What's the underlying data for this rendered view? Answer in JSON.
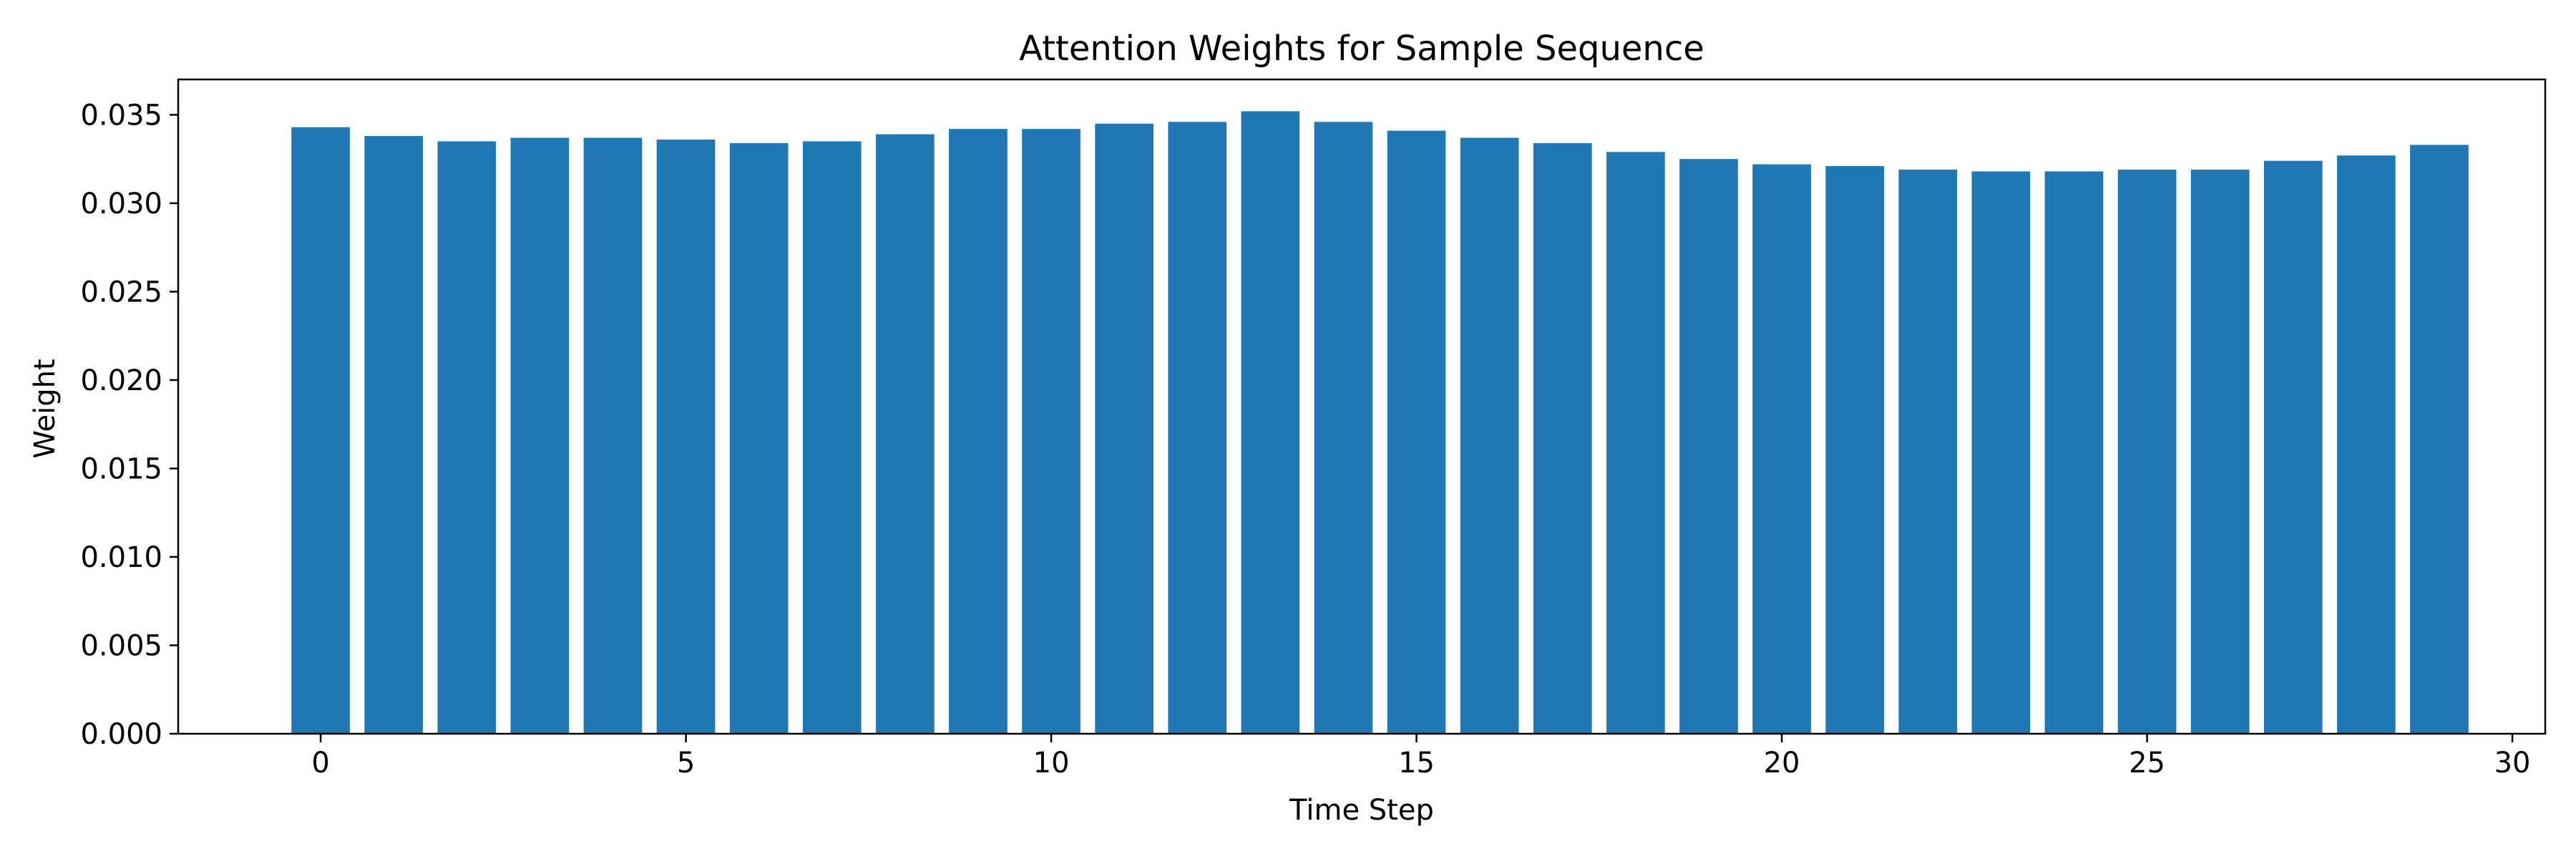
{
  "chart_data": {
    "type": "bar",
    "title": "Attention Weights for Sample Sequence",
    "xlabel": "Time Step",
    "ylabel": "Weight",
    "x": [
      0,
      1,
      2,
      3,
      4,
      5,
      6,
      7,
      8,
      9,
      10,
      11,
      12,
      13,
      14,
      15,
      16,
      17,
      18,
      19,
      20,
      21,
      22,
      23,
      24,
      25,
      26,
      27,
      28,
      29
    ],
    "values": [
      0.0343,
      0.0338,
      0.0335,
      0.0337,
      0.0337,
      0.0336,
      0.0334,
      0.0335,
      0.0339,
      0.0342,
      0.0342,
      0.0345,
      0.0346,
      0.0352,
      0.0346,
      0.0341,
      0.0337,
      0.0334,
      0.0329,
      0.0325,
      0.0322,
      0.0321,
      0.0319,
      0.0318,
      0.0318,
      0.0319,
      0.0319,
      0.0324,
      0.0327,
      0.0333
    ],
    "xlim": [
      -1.95,
      30.45
    ],
    "ylim": [
      0,
      0.037
    ],
    "x_ticks": [
      0,
      5,
      10,
      15,
      20,
      25,
      30
    ],
    "x_tick_labels": [
      "0",
      "5",
      "10",
      "15",
      "20",
      "25",
      "30"
    ],
    "y_ticks": [
      0,
      0.005,
      0.01,
      0.015,
      0.02,
      0.025,
      0.03,
      0.035
    ],
    "y_tick_labels": [
      "0.000",
      "0.005",
      "0.010",
      "0.015",
      "0.020",
      "0.025",
      "0.030",
      "0.035"
    ],
    "bar_color": "#1f77b4",
    "grid": false,
    "legend": "none"
  }
}
